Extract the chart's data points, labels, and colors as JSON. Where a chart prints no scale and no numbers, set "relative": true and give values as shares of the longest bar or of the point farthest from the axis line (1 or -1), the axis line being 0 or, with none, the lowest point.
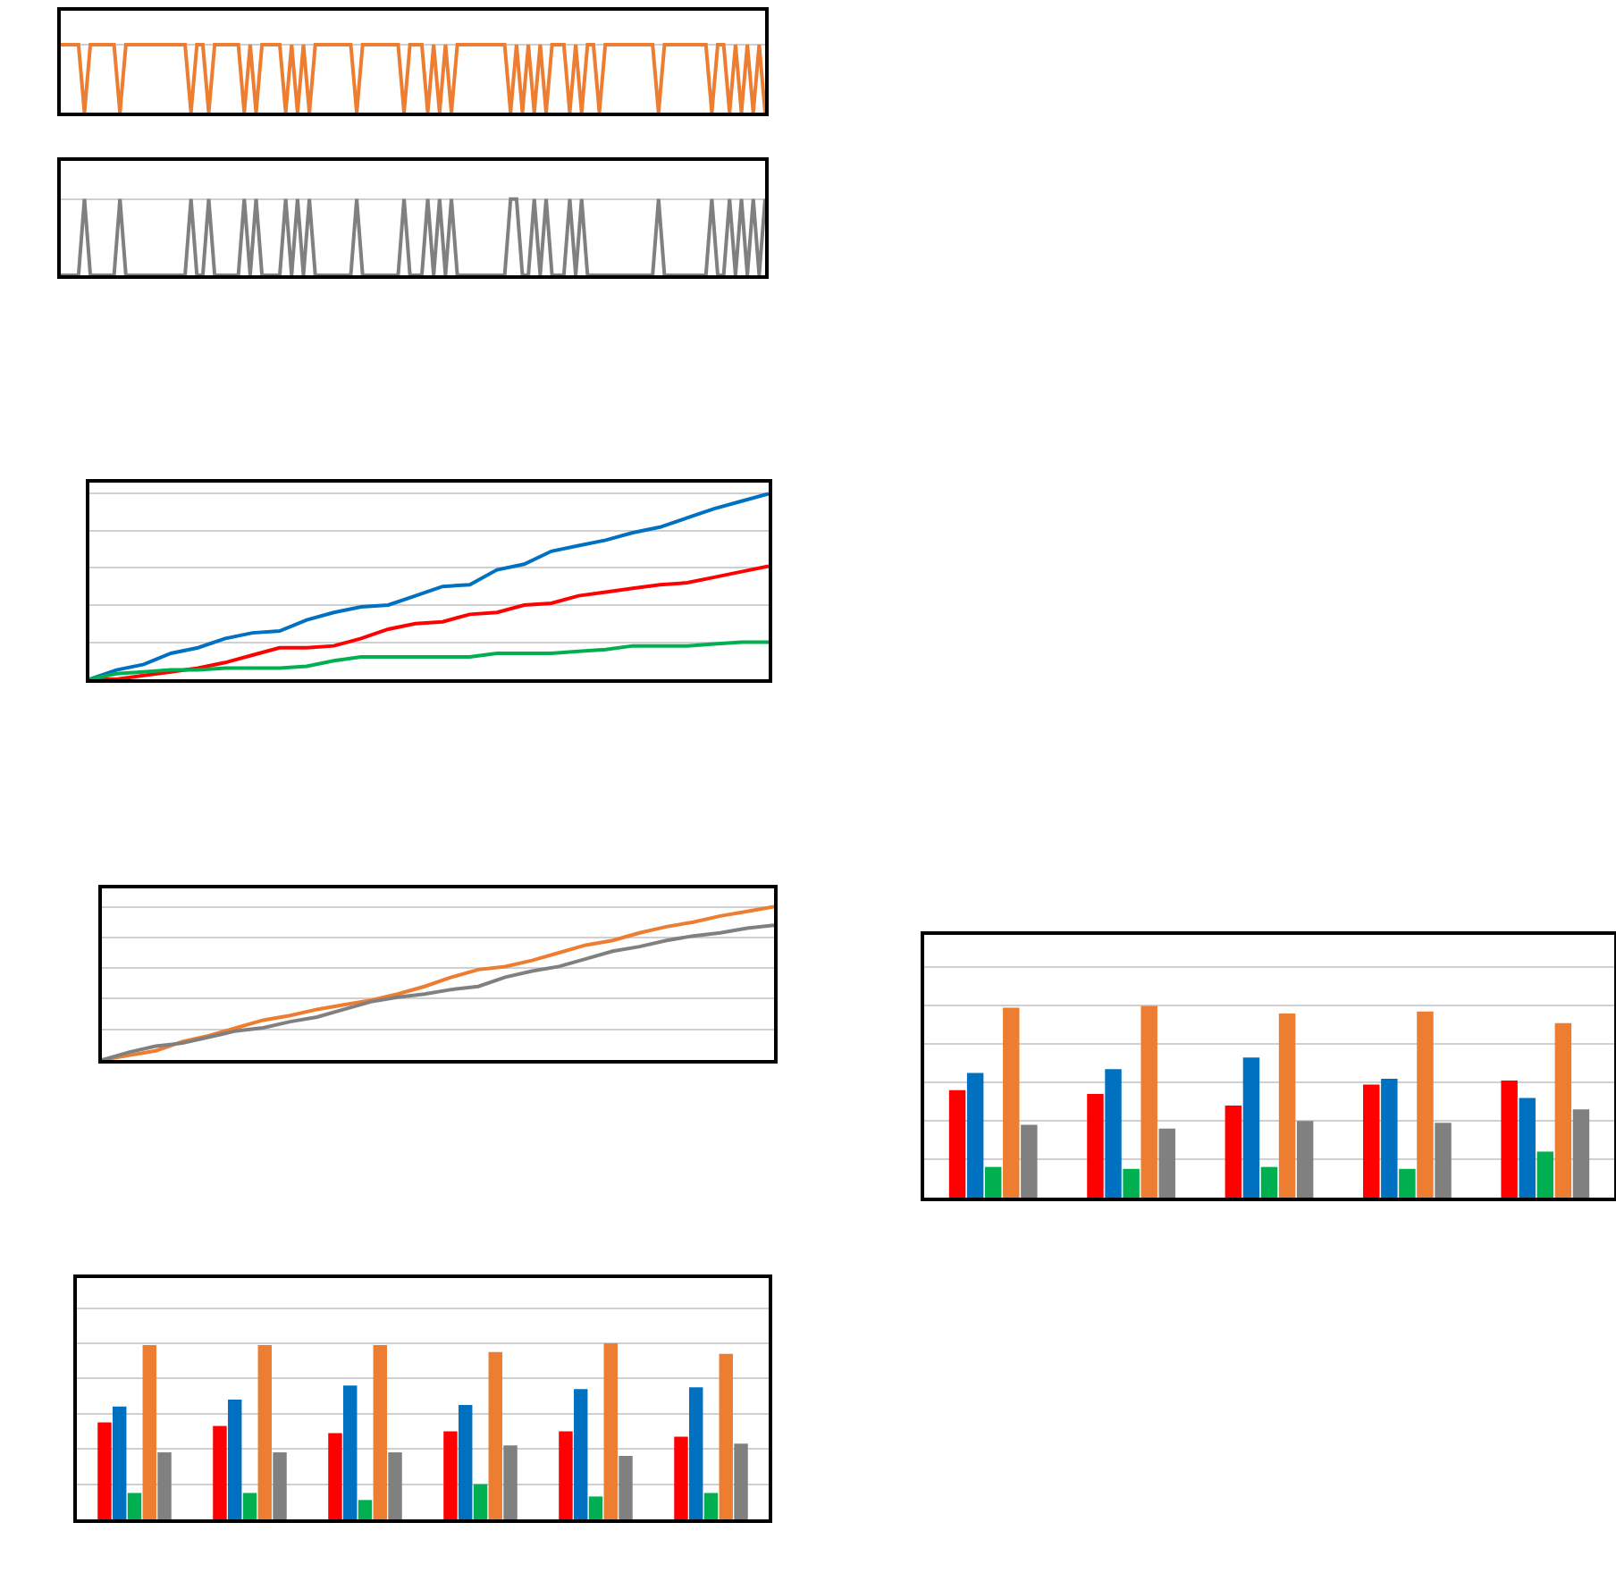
{
  "chart_data": [
    {
      "type": "line",
      "relative": true,
      "grid": "y",
      "marker": "none",
      "line_style": "solid",
      "categories": [
        null,
        null,
        null,
        null,
        null,
        null,
        null,
        null,
        null,
        null,
        null,
        null,
        null,
        null,
        null,
        null,
        null,
        null,
        null,
        null,
        null,
        null,
        null,
        null,
        null,
        null,
        null,
        null,
        null,
        null,
        null,
        null,
        null,
        null,
        null,
        null,
        null,
        null,
        null,
        null,
        null,
        null,
        null,
        null,
        null,
        null,
        null,
        null,
        null,
        null,
        null,
        null,
        null,
        null,
        null,
        null,
        null,
        null,
        null,
        null,
        null,
        null,
        null,
        null,
        null,
        null,
        null,
        null,
        null,
        null,
        null,
        null,
        null,
        null,
        null,
        null,
        null,
        null,
        null,
        null,
        null,
        null,
        null,
        null,
        null,
        null,
        null,
        null,
        null,
        null,
        null,
        null,
        null,
        null,
        null,
        null,
        null,
        null,
        null,
        null,
        null,
        null,
        null,
        null,
        null,
        null,
        null,
        null,
        null,
        null,
        null,
        null,
        null,
        null,
        null,
        null,
        null,
        null,
        null,
        null
      ],
      "series": [
        {
          "color": "#ed7d31",
          "values": [
            1,
            1,
            1,
            1,
            0,
            1,
            1,
            1,
            1,
            1,
            0,
            1,
            1,
            1,
            1,
            1,
            1,
            1,
            1,
            1,
            1,
            1,
            0,
            1,
            1,
            0,
            1,
            1,
            1,
            1,
            1,
            0,
            1,
            0,
            1,
            1,
            1,
            1,
            0,
            1,
            0,
            1,
            0,
            1,
            1,
            1,
            1,
            1,
            1,
            1,
            0,
            1,
            1,
            1,
            1,
            1,
            1,
            1,
            0,
            1,
            1,
            1,
            0,
            1,
            0,
            1,
            0,
            1,
            1,
            1,
            1,
            1,
            1,
            1,
            1,
            1,
            0,
            1,
            0,
            1,
            0,
            1,
            0,
            1,
            1,
            1,
            0,
            1,
            0,
            1,
            1,
            0,
            1,
            1,
            1,
            1,
            1,
            1,
            1,
            1,
            1,
            0,
            1,
            1,
            1,
            1,
            1,
            1,
            1,
            1,
            0,
            1,
            1,
            0,
            1,
            0,
            1,
            0,
            1,
            0
          ]
        }
      ]
    },
    {
      "type": "line",
      "relative": true,
      "grid": "y",
      "marker": "none",
      "line_style": "solid",
      "categories": [
        null,
        null,
        null,
        null,
        null,
        null,
        null,
        null,
        null,
        null,
        null,
        null,
        null,
        null,
        null,
        null,
        null,
        null,
        null,
        null,
        null,
        null,
        null,
        null,
        null,
        null,
        null,
        null,
        null,
        null,
        null,
        null,
        null,
        null,
        null,
        null,
        null,
        null,
        null,
        null,
        null,
        null,
        null,
        null,
        null,
        null,
        null,
        null,
        null,
        null,
        null,
        null,
        null,
        null,
        null,
        null,
        null,
        null,
        null,
        null,
        null,
        null,
        null,
        null,
        null,
        null,
        null,
        null,
        null,
        null,
        null,
        null,
        null,
        null,
        null,
        null,
        null,
        null,
        null,
        null,
        null,
        null,
        null,
        null,
        null,
        null,
        null,
        null,
        null,
        null,
        null,
        null,
        null,
        null,
        null,
        null,
        null,
        null,
        null,
        null,
        null,
        null,
        null,
        null,
        null,
        null,
        null,
        null,
        null,
        null,
        null,
        null,
        null,
        null,
        null,
        null,
        null,
        null,
        null,
        null
      ],
      "series": [
        {
          "color": "#808080",
          "values": [
            0,
            0,
            0,
            0,
            1,
            0,
            0,
            0,
            0,
            0,
            1,
            0,
            0,
            0,
            0,
            0,
            0,
            0,
            0,
            0,
            0,
            0,
            1,
            0,
            0,
            1,
            0,
            0,
            0,
            0,
            0,
            1,
            0,
            1,
            0,
            0,
            0,
            0,
            1,
            0,
            1,
            0,
            1,
            0,
            0,
            0,
            0,
            0,
            0,
            0,
            1,
            0,
            0,
            0,
            0,
            0,
            0,
            0,
            1,
            0,
            0,
            0,
            1,
            0,
            1,
            0,
            1,
            0,
            0,
            0,
            0,
            0,
            0,
            0,
            0,
            0,
            1,
            1,
            0,
            0,
            1,
            0,
            1,
            0,
            0,
            0,
            1,
            0,
            1,
            0,
            0,
            0,
            0,
            0,
            0,
            0,
            0,
            0,
            0,
            0,
            0,
            1,
            0,
            0,
            0,
            0,
            0,
            0,
            0,
            0,
            1,
            0,
            0,
            1,
            0,
            1,
            0,
            1,
            0,
            1
          ]
        }
      ]
    },
    {
      "type": "line",
      "relative": true,
      "grid": "y",
      "marker": "none",
      "line_style": "solid",
      "categories": [
        null,
        null,
        null,
        null,
        null,
        null,
        null,
        null,
        null,
        null,
        null,
        null,
        null,
        null,
        null,
        null,
        null,
        null,
        null,
        null,
        null,
        null,
        null,
        null,
        null,
        null
      ],
      "series": [
        {
          "color": "#ff0000",
          "values": [
            0,
            0,
            0.02,
            0.04,
            0.06,
            0.09,
            0.13,
            0.17,
            0.17,
            0.18,
            0.22,
            0.27,
            0.3,
            0.31,
            0.35,
            0.36,
            0.4,
            0.41,
            0.45,
            0.47,
            0.49,
            0.51,
            0.52,
            0.55,
            0.58,
            0.61
          ]
        },
        {
          "color": "#0070c0",
          "values": [
            0,
            0.05,
            0.08,
            0.14,
            0.17,
            0.22,
            0.25,
            0.26,
            0.32,
            0.36,
            0.39,
            0.4,
            0.45,
            0.5,
            0.51,
            0.59,
            0.62,
            0.69,
            0.72,
            0.75,
            0.79,
            0.82,
            0.87,
            0.92,
            0.96,
            1
          ]
        },
        {
          "color": "#00b050",
          "values": [
            0,
            0.03,
            0.04,
            0.05,
            0.05,
            0.06,
            0.06,
            0.06,
            0.07,
            0.1,
            0.12,
            0.12,
            0.12,
            0.12,
            0.12,
            0.14,
            0.14,
            0.14,
            0.15,
            0.16,
            0.18,
            0.18,
            0.18,
            0.19,
            0.2,
            0.2
          ]
        }
      ]
    },
    {
      "type": "line",
      "relative": true,
      "grid": "y",
      "marker": "none",
      "line_style": "solid",
      "categories": [
        null,
        null,
        null,
        null,
        null,
        null,
        null,
        null,
        null,
        null,
        null,
        null,
        null,
        null,
        null,
        null,
        null,
        null,
        null,
        null,
        null,
        null,
        null,
        null,
        null,
        null
      ],
      "series": [
        {
          "color": "#ed7d31",
          "values": [
            0,
            0.03,
            0.06,
            0.12,
            0.16,
            0.21,
            0.26,
            0.29,
            0.33,
            0.36,
            0.39,
            0.43,
            0.48,
            0.54,
            0.59,
            0.61,
            0.65,
            0.7,
            0.75,
            0.78,
            0.83,
            0.87,
            0.9,
            0.94,
            0.97,
            1
          ]
        },
        {
          "color": "#808080",
          "values": [
            0,
            0.05,
            0.09,
            0.11,
            0.15,
            0.19,
            0.21,
            0.25,
            0.28,
            0.33,
            0.38,
            0.41,
            0.43,
            0.46,
            0.48,
            0.54,
            0.58,
            0.61,
            0.66,
            0.71,
            0.74,
            0.78,
            0.81,
            0.83,
            0.86,
            0.88
          ]
        }
      ]
    },
    {
      "type": "bar",
      "relative": true,
      "grid": "y",
      "categories": [
        null,
        null,
        null,
        null,
        null,
        null
      ],
      "series": [
        {
          "color": "#ff0000",
          "values": [
            0.55,
            0.53,
            0.49,
            0.5,
            0.5,
            0.47
          ]
        },
        {
          "color": "#0070c0",
          "values": [
            0.64,
            0.68,
            0.76,
            0.65,
            0.74,
            0.75
          ]
        },
        {
          "color": "#00b050",
          "values": [
            0.15,
            0.15,
            0.11,
            0.2,
            0.13,
            0.15
          ]
        },
        {
          "color": "#ed7d31",
          "values": [
            0.99,
            0.99,
            0.99,
            0.95,
            1,
            0.94
          ]
        },
        {
          "color": "#808080",
          "values": [
            0.38,
            0.38,
            0.38,
            0.42,
            0.36,
            0.43
          ]
        }
      ]
    },
    {
      "type": "bar",
      "relative": true,
      "grid": "y",
      "categories": [
        null,
        null,
        null,
        null,
        null
      ],
      "series": [
        {
          "color": "#ff0000",
          "values": [
            0.56,
            0.54,
            0.48,
            0.59,
            0.61
          ]
        },
        {
          "color": "#0070c0",
          "values": [
            0.65,
            0.67,
            0.73,
            0.62,
            0.52
          ]
        },
        {
          "color": "#00b050",
          "values": [
            0.16,
            0.15,
            0.16,
            0.15,
            0.24
          ]
        },
        {
          "color": "#ed7d31",
          "values": [
            0.99,
            1,
            0.96,
            0.97,
            0.91
          ]
        },
        {
          "color": "#808080",
          "values": [
            0.38,
            0.36,
            0.4,
            0.39,
            0.46
          ]
        }
      ]
    }
  ]
}
